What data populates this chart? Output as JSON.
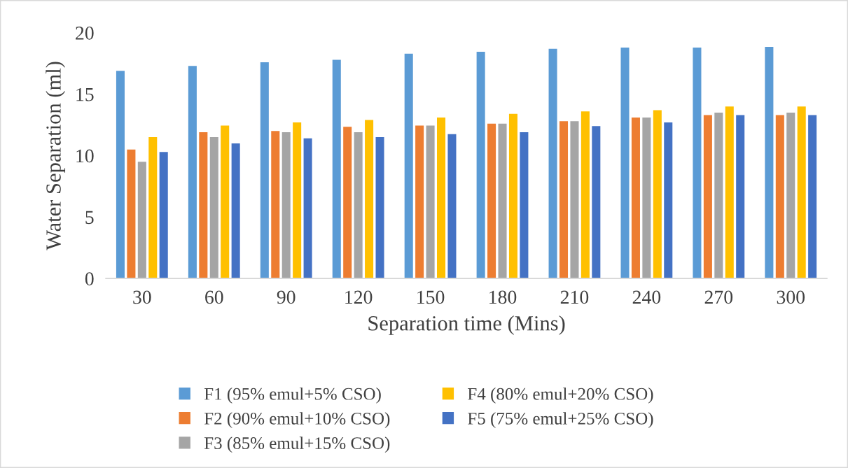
{
  "chart_data": {
    "type": "bar",
    "xlabel": "Separation time (Mins)",
    "ylabel": "Water Separation (ml)",
    "categories": [
      "30",
      "60",
      "90",
      "120",
      "150",
      "180",
      "210",
      "240",
      "270",
      "300"
    ],
    "series": [
      {
        "name": "F1 (95% emul+5% CSO)",
        "color": "#5b9bd5",
        "values": [
          16.9,
          17.3,
          17.6,
          17.8,
          18.3,
          18.45,
          18.7,
          18.8,
          18.8,
          18.85
        ]
      },
      {
        "name": "F2 (90% emul+10% CSO)",
        "color": "#ed7d31",
        "values": [
          10.5,
          11.9,
          12.0,
          12.35,
          12.45,
          12.6,
          12.8,
          13.1,
          13.3,
          13.3
        ]
      },
      {
        "name": "F3 (85% emul+15% CSO)",
        "color": "#a5a5a5",
        "values": [
          9.5,
          11.5,
          11.9,
          11.9,
          12.45,
          12.6,
          12.8,
          13.1,
          13.5,
          13.5
        ]
      },
      {
        "name": "F4 (80% emul+20% CSO)",
        "color": "#ffc000",
        "values": [
          11.5,
          12.45,
          12.7,
          12.9,
          13.1,
          13.4,
          13.6,
          13.7,
          14.0,
          14.0
        ]
      },
      {
        "name": "F5 (75% emul+25% CSO)",
        "color": "#4472c4",
        "values": [
          10.3,
          11.0,
          11.4,
          11.5,
          11.75,
          11.9,
          12.4,
          12.7,
          13.3,
          13.3
        ]
      }
    ],
    "ylim": [
      0,
      20
    ],
    "yticks": [
      0,
      5,
      10,
      15,
      20
    ],
    "grid": false,
    "legend": "bottom"
  }
}
